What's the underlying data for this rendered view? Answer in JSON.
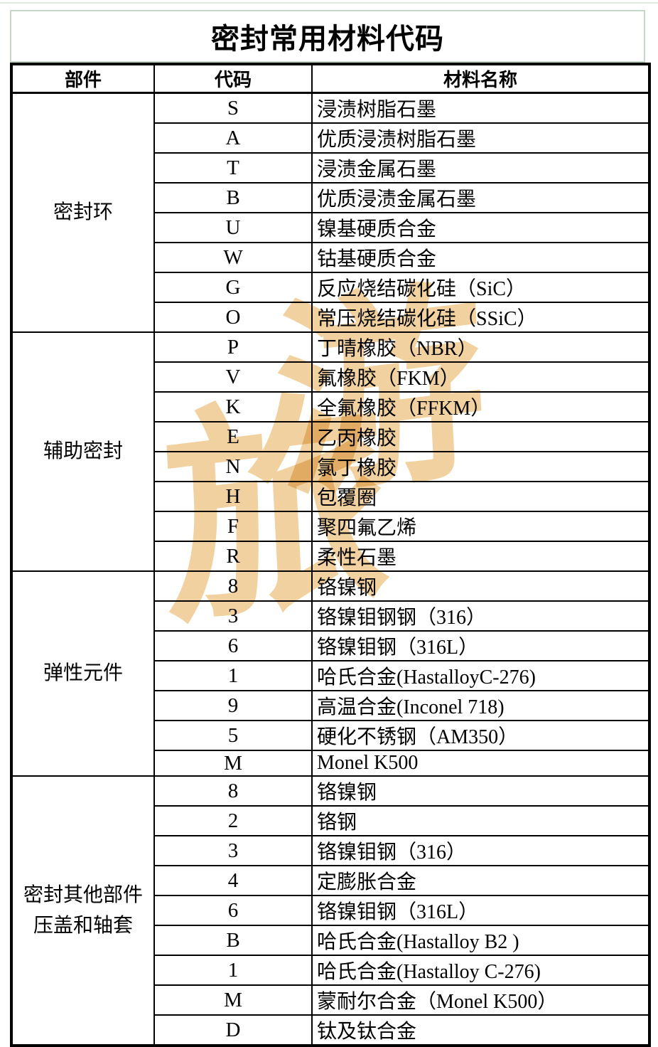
{
  "page": {
    "title": "密封常用材料代码"
  },
  "table": {
    "headers": [
      "部件",
      "代码",
      "材料名称"
    ],
    "sections": [
      {
        "part": "密封环",
        "rows": [
          [
            "S",
            "浸渍树脂石墨"
          ],
          [
            "A",
            "优质浸渍树脂石墨"
          ],
          [
            "T",
            "浸渍金属石墨"
          ],
          [
            "B",
            "优质浸渍金属石墨"
          ],
          [
            "U",
            "镍基硬质合金"
          ],
          [
            "W",
            "钴基硬质合金"
          ],
          [
            "G",
            "反应烧结碳化硅（SiC）"
          ],
          [
            "O",
            "常压烧结碳化硅（SSiC）"
          ]
        ]
      },
      {
        "part": "辅助密封",
        "rows": [
          [
            "P",
            "丁晴橡胶（NBR）"
          ],
          [
            "V",
            "氟橡胶（FKM）"
          ],
          [
            "K",
            "全氟橡胶（FFKM）"
          ],
          [
            "E",
            "乙丙橡胶"
          ],
          [
            "N",
            "氯丁橡胶"
          ],
          [
            "H",
            "包覆圈"
          ],
          [
            "F",
            "聚四氟乙烯"
          ],
          [
            "R",
            "柔性石墨"
          ]
        ]
      },
      {
        "part": "弹性元件",
        "rows": [
          [
            "8",
            "铬镍钢"
          ],
          [
            "3",
            "铬镍钼钢钢（316）"
          ],
          [
            "6",
            "铬镍钼钢（316L）"
          ],
          [
            "1",
            "哈氏合金(HastalloyC-276)"
          ],
          [
            "9",
            "高温合金(Inconel 718)"
          ],
          [
            "5",
            "硬化不锈钢（AM350）"
          ],
          [
            "M",
            "Monel K500"
          ]
        ]
      },
      {
        "part": "密封其他部件\n压盖和轴套",
        "rows": [
          [
            "8",
            "铬镍钢"
          ],
          [
            "2",
            "铬钢"
          ],
          [
            "3",
            "铬镍钼钢（316）"
          ],
          [
            "4",
            "定膨胀合金"
          ],
          [
            "6",
            "铬镍钼钢（316L）"
          ],
          [
            "B",
            "哈氏合金(Hastalloy B2 )"
          ],
          [
            "1",
            "哈氏合金(Hastalloy C-276)"
          ],
          [
            "M",
            "蒙耐尔合金（Monel K500）"
          ],
          [
            "D",
            "钛及钛合金"
          ]
        ]
      }
    ]
  },
  "watermark": {
    "left_char": "旅",
    "right_char": "游",
    "color": "#efcd97"
  },
  "colors": {
    "title_border": "#c6d7c9",
    "grid": "#000000",
    "background": "#ffffff"
  }
}
